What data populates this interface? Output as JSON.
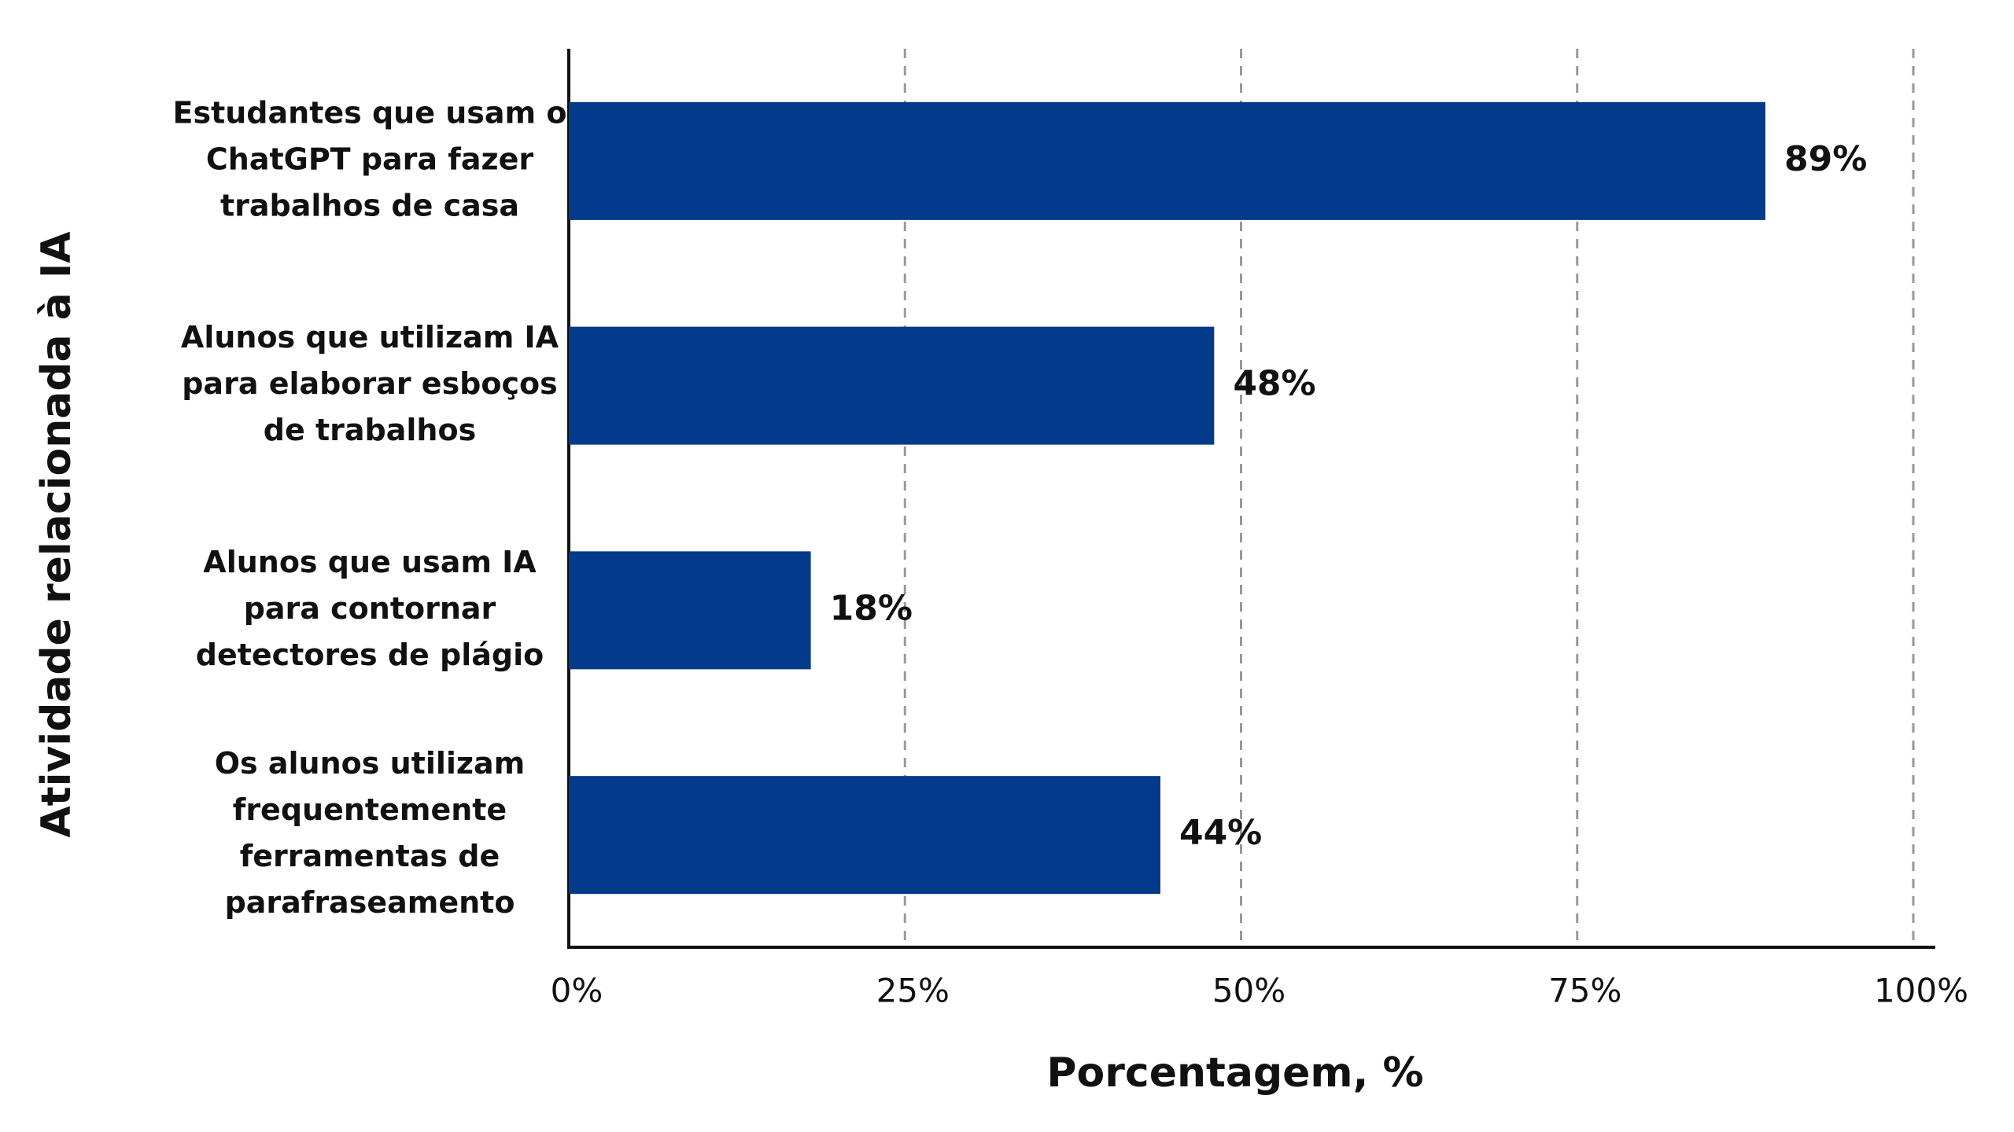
{
  "chart_data": {
    "type": "barh",
    "x_label": "Porcentagem, %",
    "y_label": "Atividade relacionada à IA",
    "categories": [
      [
        "Estudantes que usam o",
        "ChatGPT para fazer",
        "trabalhos de casa"
      ],
      [
        "Alunos que utilizam IA",
        "para elaborar esboços",
        "de trabalhos"
      ],
      [
        "Alunos que usam IA",
        "para contornar",
        "detectores de plágio"
      ],
      [
        "Os alunos utilizam",
        "frequentemente",
        "ferramentas de",
        "parafraseamento"
      ]
    ],
    "values": [
      89,
      48,
      18,
      44
    ],
    "value_labels": [
      "89%",
      "48%",
      "18%",
      "44%"
    ],
    "color": "#043a8a",
    "xlim": [
      0,
      100
    ],
    "xticks": [
      {
        "value": 0,
        "label": "0%"
      },
      {
        "value": 25,
        "label": "25%"
      },
      {
        "value": 50,
        "label": "50%"
      },
      {
        "value": 75,
        "label": "75%"
      },
      {
        "value": 100,
        "label": "100%"
      }
    ],
    "grid": true
  }
}
